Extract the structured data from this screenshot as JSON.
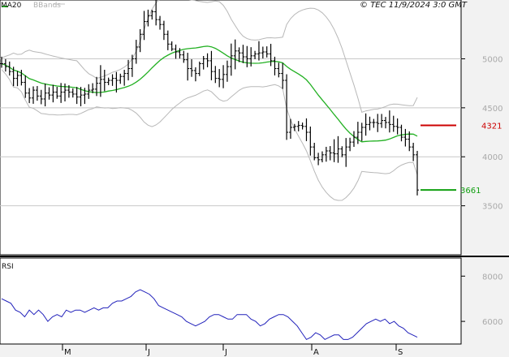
{
  "legend": {
    "ma_label": "MA20",
    "bb_label": "BBands",
    "ma_color": "#22b022",
    "bb_color": "#b8b8b8"
  },
  "copyright": "© TEC 11/9/2024 3:0 GMT",
  "y_ticks": [
    "5000",
    "4500",
    "4000",
    "3500"
  ],
  "rsi": {
    "label": "RSI",
    "ticks": [
      "8000",
      "6000"
    ],
    "color": "#2222bb"
  },
  "months": [
    "M",
    "J",
    "J",
    "A",
    "S"
  ],
  "levels": {
    "resistance": "4321",
    "support": "3661",
    "resistance_color": "#cc0000",
    "support_color": "#11a011"
  },
  "chart_data": {
    "type": "ohlc",
    "ylim": [
      3000,
      5600
    ],
    "rsi_ylim": [
      5000,
      8800
    ],
    "close": [
      4950,
      4920,
      4870,
      4800,
      4830,
      4760,
      4650,
      4600,
      4680,
      4620,
      4590,
      4650,
      4630,
      4660,
      4620,
      4660,
      4680,
      4660,
      4640,
      4610,
      4630,
      4640,
      4680,
      4690,
      4750,
      4790,
      4760,
      4780,
      4800,
      4780,
      4820,
      4850,
      4900,
      5000,
      5120,
      5250,
      5380,
      5440,
      5480,
      5400,
      5350,
      5250,
      5150,
      5100,
      5070,
      5040,
      4990,
      4900,
      4880,
      4850,
      4950,
      5000,
      4980,
      4870,
      4800,
      4790,
      4840,
      4920,
      5030,
      5080,
      5060,
      5020,
      5000,
      5030,
      5050,
      5060,
      5070,
      5050,
      4980,
      4900,
      4850,
      4780,
      4250,
      4300,
      4310,
      4320,
      4310,
      4250,
      4100,
      3990,
      3970,
      4020,
      4060,
      4040,
      4030,
      4080,
      4020,
      4100,
      4150,
      4200,
      4250,
      4300,
      4330,
      4350,
      4350,
      4340,
      4370,
      4350,
      4330,
      4310,
      4300,
      4200,
      4180,
      4100,
      4020,
      3661
    ],
    "rsi": [
      7000,
      6900,
      6800,
      6500,
      6400,
      6200,
      6500,
      6300,
      6500,
      6300,
      6000,
      6200,
      6300,
      6200,
      6500,
      6400,
      6500,
      6500,
      6400,
      6500,
      6600,
      6500,
      6600,
      6600,
      6800,
      6900,
      6900,
      7000,
      7100,
      7300,
      7400,
      7300,
      7200,
      7000,
      6700,
      6600,
      6500,
      6400,
      6300,
      6200,
      6000,
      5900,
      5800,
      5900,
      6000,
      6200,
      6300,
      6300,
      6200,
      6100,
      6100,
      6300,
      6300,
      6300,
      6100,
      6000,
      5800,
      5900,
      6100,
      6200,
      6300,
      6300,
      6200,
      6000,
      5800,
      5500,
      5200,
      5300,
      5500,
      5400,
      5200,
      5300,
      5400,
      5400,
      5200,
      5200,
      5300,
      5500,
      5700,
      5900,
      6000,
      6100,
      6000,
      6100,
      5900,
      6000,
      5800,
      5700,
      5500,
      5400,
      5300
    ]
  }
}
